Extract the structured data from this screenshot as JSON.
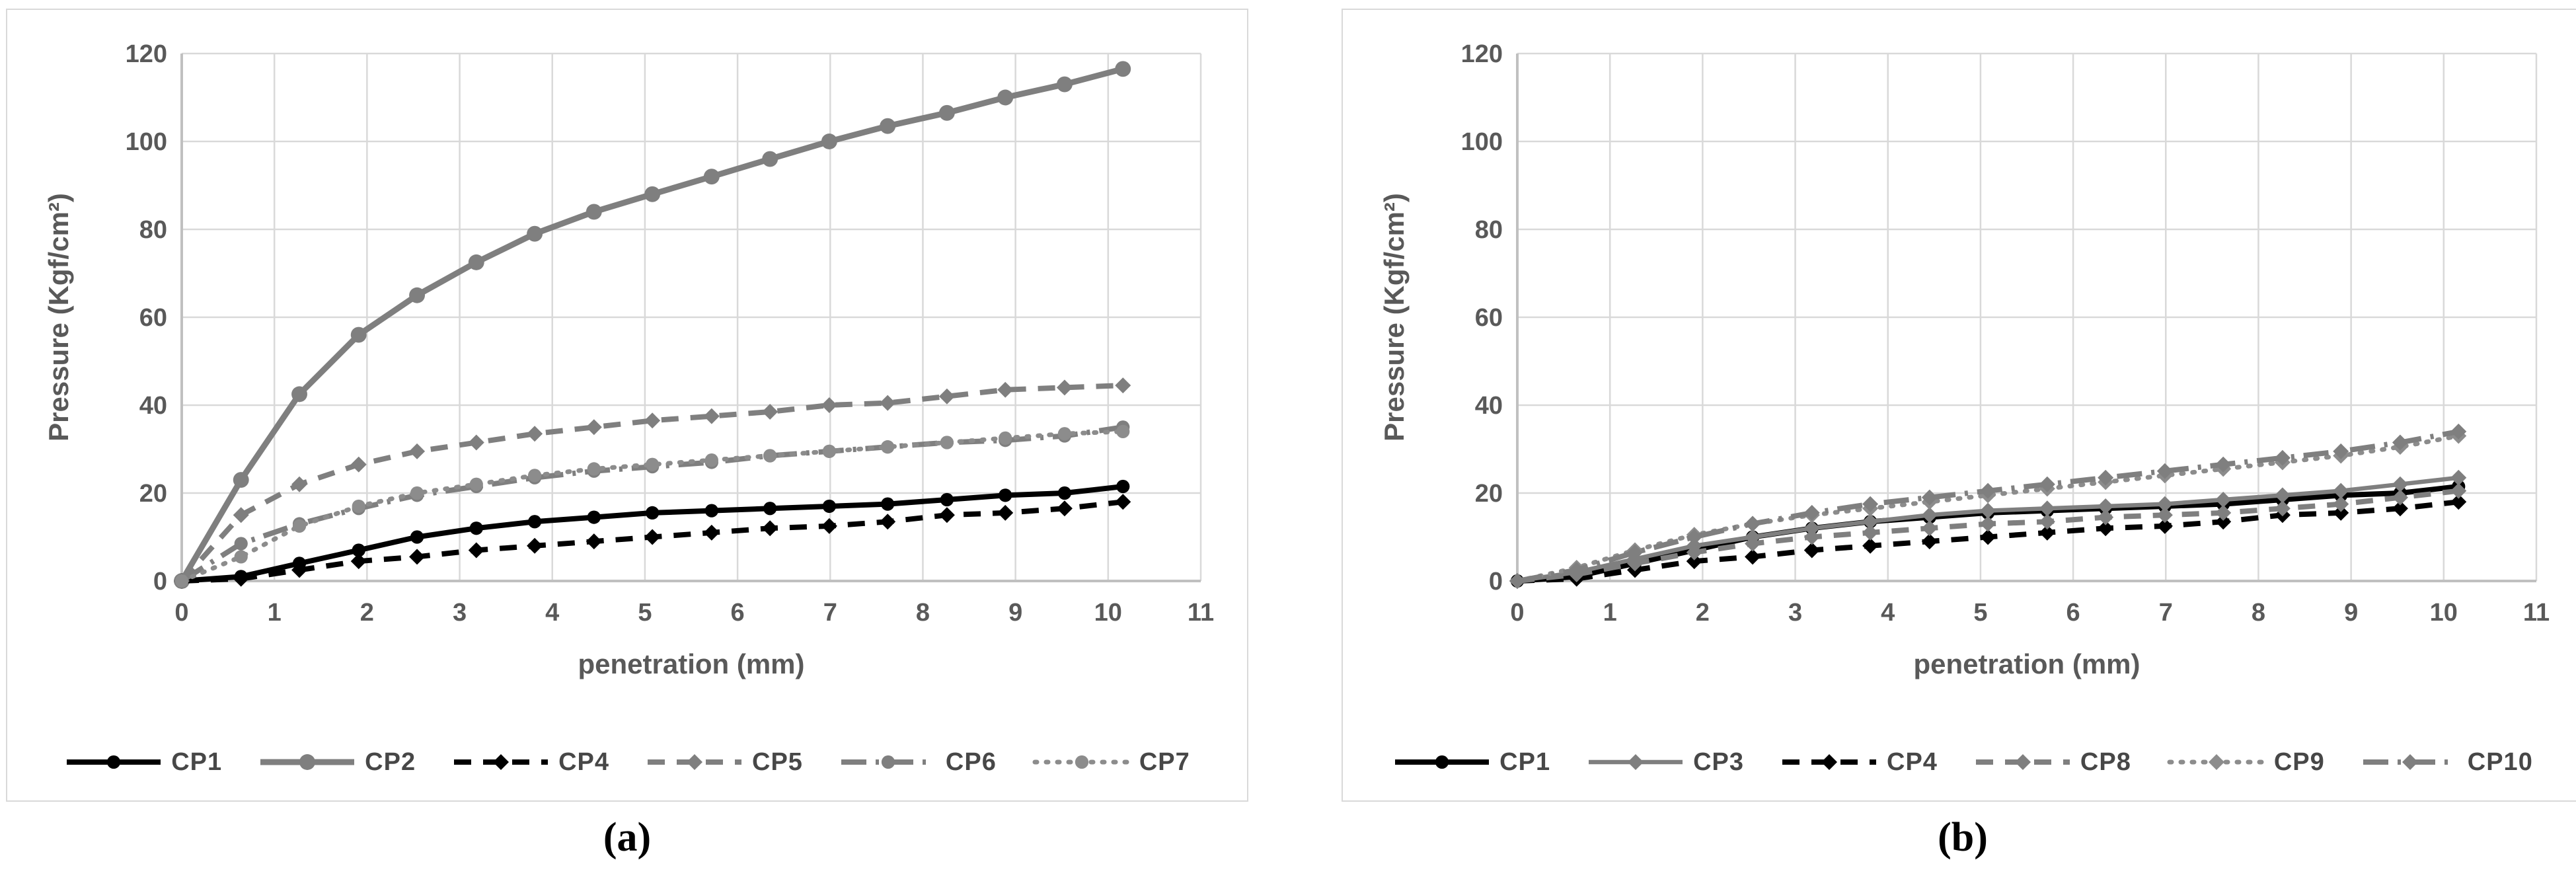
{
  "figure": {
    "background": "#ffffff",
    "colors": {
      "grid": "#d9d9d9",
      "axis_line": "#c0c0c0",
      "panel_border": "#d9d9d9",
      "tick_text": "#595959",
      "axis_title_text": "#595959",
      "legend_text": "#474747",
      "series_black": "#000000",
      "series_gray": "#7f7f7f"
    },
    "panels": [
      {
        "sublabel": "(a)"
      },
      {
        "sublabel": "(b)"
      }
    ]
  },
  "chart_data": [
    {
      "type": "line",
      "title": "",
      "sublabel": "(a)",
      "xlabel": "penetration (mm)",
      "ylabel": "Pressure (Kgf/cm²)",
      "xlim": [
        0,
        11
      ],
      "ylim": [
        0,
        120
      ],
      "xticks": [
        0,
        1,
        2,
        3,
        4,
        5,
        6,
        7,
        8,
        9,
        10,
        11
      ],
      "yticks": [
        0,
        20,
        40,
        60,
        80,
        100,
        120
      ],
      "grid": true,
      "legend_position": "bottom",
      "x": [
        0,
        0.64,
        1.27,
        1.91,
        2.54,
        3.18,
        3.81,
        4.45,
        5.08,
        5.72,
        6.35,
        6.99,
        7.62,
        8.26,
        8.89,
        9.53,
        10.16
      ],
      "series": [
        {
          "name": "CP1",
          "color": "#000000",
          "line": "solid",
          "marker": "circle",
          "values": [
            0,
            1,
            4,
            7,
            10,
            12,
            13.5,
            14.5,
            15.5,
            16,
            16.5,
            17,
            17.5,
            18.5,
            19.5,
            20,
            21.5
          ]
        },
        {
          "name": "CP2",
          "color": "#7f7f7f",
          "line": "solid",
          "marker": "circle",
          "values": [
            0,
            23,
            42.5,
            56,
            65,
            72.5,
            79,
            84,
            88,
            92,
            96,
            100,
            103.5,
            106.5,
            110,
            113,
            116.5
          ]
        },
        {
          "name": "CP4",
          "color": "#000000",
          "line": "dashed",
          "marker": "diamond",
          "values": [
            0,
            0.5,
            2.5,
            4.5,
            5.5,
            7,
            8,
            9,
            10,
            11,
            12,
            12.5,
            13.5,
            15,
            15.5,
            16.5,
            18
          ]
        },
        {
          "name": "CP5",
          "color": "#7f7f7f",
          "line": "dashed",
          "marker": "diamond",
          "values": [
            0,
            15,
            22,
            26.5,
            29.5,
            31.5,
            33.5,
            35,
            36.5,
            37.5,
            38.5,
            40,
            40.5,
            42,
            43.5,
            44,
            44.5
          ]
        },
        {
          "name": "CP6",
          "color": "#7f7f7f",
          "line": "dashdot",
          "marker": "circle",
          "values": [
            0,
            8.5,
            13,
            16.5,
            19.5,
            21.5,
            23.5,
            25,
            26,
            27,
            28.5,
            29.5,
            30.5,
            31.5,
            32,
            33,
            35
          ]
        },
        {
          "name": "CP7",
          "color": "#8c8c8c",
          "line": "dotted",
          "marker": "circle",
          "values": [
            0,
            5.5,
            12.5,
            17,
            20,
            22,
            24,
            25.5,
            26.5,
            27.5,
            28.5,
            29.5,
            30.5,
            31.5,
            32.5,
            33.5,
            34
          ]
        }
      ]
    },
    {
      "type": "line",
      "title": "",
      "sublabel": "(b)",
      "xlabel": "penetration (mm)",
      "ylabel": "Pressure (Kgf/cm²)",
      "xlim": [
        0,
        11
      ],
      "ylim": [
        0,
        120
      ],
      "xticks": [
        0,
        1,
        2,
        3,
        4,
        5,
        6,
        7,
        8,
        9,
        10,
        11
      ],
      "yticks": [
        0,
        20,
        40,
        60,
        80,
        100,
        120
      ],
      "grid": true,
      "legend_position": "bottom",
      "x": [
        0,
        0.64,
        1.27,
        1.91,
        2.54,
        3.18,
        3.81,
        4.45,
        5.08,
        5.72,
        6.35,
        6.99,
        7.62,
        8.26,
        8.89,
        9.53,
        10.16
      ],
      "series": [
        {
          "name": "CP1",
          "color": "#000000",
          "line": "solid",
          "marker": "circle",
          "values": [
            0,
            1,
            4,
            7,
            10,
            12,
            13.5,
            14.5,
            15.5,
            16,
            16.5,
            17,
            17.5,
            18.5,
            19.5,
            20,
            21.5
          ]
        },
        {
          "name": "CP3",
          "color": "#7f7f7f",
          "line": "solid",
          "marker": "diamond",
          "values": [
            0,
            2,
            5,
            8,
            10,
            12,
            13.5,
            15,
            16,
            16.5,
            17,
            17.5,
            18.5,
            19.5,
            20.5,
            22,
            23.5
          ]
        },
        {
          "name": "CP4",
          "color": "#000000",
          "line": "dashed",
          "marker": "diamond",
          "values": [
            0,
            0.5,
            2.5,
            4.5,
            5.5,
            7,
            8,
            9,
            10,
            11,
            12,
            12.5,
            13.5,
            15,
            15.5,
            16.5,
            18
          ]
        },
        {
          "name": "CP8",
          "color": "#7f7f7f",
          "line": "dashed",
          "marker": "diamond",
          "values": [
            0,
            1.5,
            4,
            6.5,
            8.5,
            10,
            11,
            12,
            13,
            13.5,
            14.5,
            15,
            15.5,
            16.5,
            17.5,
            19,
            20.5
          ]
        },
        {
          "name": "CP9",
          "color": "#8c8c8c",
          "line": "dotted",
          "marker": "diamond",
          "values": [
            0,
            3,
            7,
            10.5,
            13,
            15,
            16.5,
            18,
            19.5,
            21,
            22.5,
            24,
            25.5,
            27,
            28.5,
            30.5,
            33
          ]
        },
        {
          "name": "CP10",
          "color": "#7f7f7f",
          "line": "dashdot",
          "marker": "diamond",
          "values": [
            0,
            2.5,
            6.5,
            10,
            13,
            15.5,
            17.5,
            19,
            20.5,
            22,
            23.5,
            25,
            26.5,
            28,
            29.5,
            31.5,
            34
          ]
        }
      ]
    }
  ]
}
